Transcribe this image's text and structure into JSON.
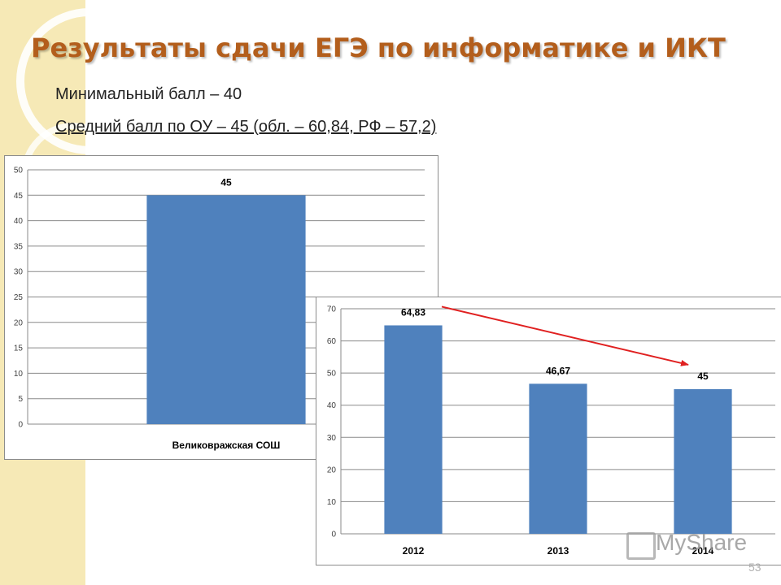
{
  "slide": {
    "title": "Результаты сдачи ЕГЭ по информатике и ИКТ",
    "line1": "Минимальный балл – 40",
    "line2": "Средний балл по ОУ – 45 (обл. – 60,84, РФ – 57,2)",
    "page_number": "53",
    "watermark": "MyShare",
    "colors": {
      "title": "#b35e1c",
      "bar": "#4f81bd",
      "arrow": "#e02020",
      "decor": "#f3e3a8"
    }
  },
  "chart_data": [
    {
      "type": "bar",
      "categories": [
        "Великовражская СОШ"
      ],
      "values": [
        45
      ],
      "data_labels": [
        "45"
      ],
      "ylim": [
        0,
        50
      ],
      "yticks": [
        0,
        5,
        10,
        15,
        20,
        25,
        30,
        35,
        40,
        45,
        50
      ],
      "title": "",
      "xlabel": "",
      "ylabel": "",
      "grid": true,
      "legend": "none"
    },
    {
      "type": "bar",
      "categories": [
        "2012",
        "2013",
        "2014"
      ],
      "values": [
        64.83,
        46.67,
        45
      ],
      "data_labels": [
        "64,83",
        "46,67",
        "45"
      ],
      "ylim": [
        0,
        70
      ],
      "yticks": [
        0,
        10,
        20,
        30,
        40,
        50,
        60,
        70
      ],
      "title": "",
      "xlabel": "",
      "ylabel": "",
      "grid": true,
      "legend": "none",
      "annotation": "red trend arrow from 2012 bar label to 2014 bar label"
    }
  ]
}
